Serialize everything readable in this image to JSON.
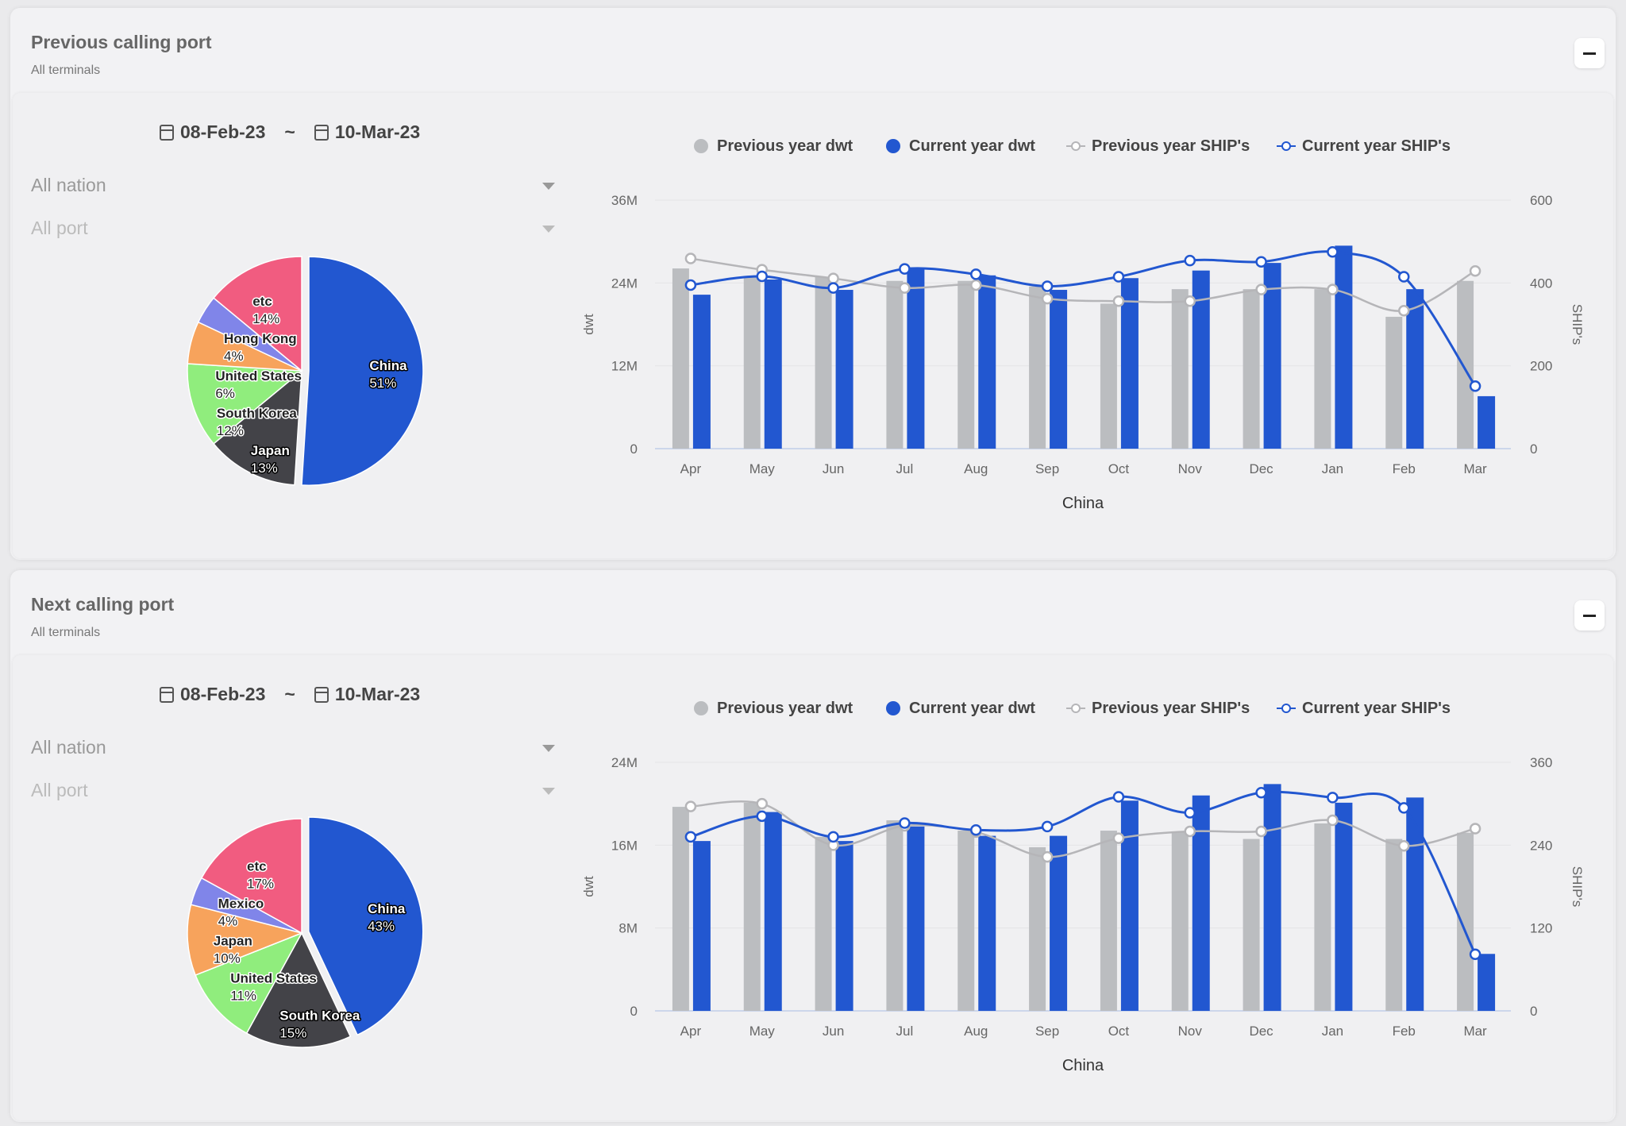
{
  "panels": [
    {
      "title": "Previous calling port",
      "subtitle": "All terminals",
      "date_from": "08-Feb-23",
      "date_sep": "~",
      "date_to": "10-Mar-23",
      "nation_select": "All nation",
      "port_select": "All port"
    },
    {
      "title": "Next calling port",
      "subtitle": "All terminals",
      "date_from": "08-Feb-23",
      "date_sep": "~",
      "date_to": "10-Mar-23",
      "nation_select": "All nation",
      "port_select": "All port"
    }
  ],
  "colors": {
    "prev_dwt": "#bbbdc0",
    "cur_dwt": "#2257d0",
    "prev_ships": "#b5b5b8",
    "cur_ships": "#2257d0"
  },
  "chart_data": [
    {
      "type": "pie",
      "slices": [
        {
          "label": "China",
          "value": 51,
          "pct": "51%",
          "color": "#2257d0"
        },
        {
          "label": "Japan",
          "value": 13,
          "pct": "13%",
          "color": "#434348"
        },
        {
          "label": "South Korea",
          "value": 12,
          "pct": "12%",
          "color": "#90ed7d"
        },
        {
          "label": "United States",
          "value": 6,
          "pct": "6%",
          "color": "#f7a35c"
        },
        {
          "label": "Hong Kong",
          "value": 4,
          "pct": "4%",
          "color": "#8085e9"
        },
        {
          "label": "etc",
          "value": 14,
          "pct": "14%",
          "color": "#f15c80"
        }
      ]
    },
    {
      "type": "bar",
      "title": "China",
      "xlabel": "China",
      "ylabel": "dwt",
      "y2label": "SHIP's",
      "categories": [
        "Apr",
        "May",
        "Jun",
        "Jul",
        "Aug",
        "Sep",
        "Oct",
        "Nov",
        "Dec",
        "Jan",
        "Feb",
        "Mar"
      ],
      "ylim": [
        0,
        36
      ],
      "yticks": [
        "0",
        "12M",
        "24M",
        "36M"
      ],
      "y2lim": [
        0,
        600
      ],
      "y2ticks": [
        "0",
        "200",
        "400",
        "600"
      ],
      "legend": [
        "Previous year dwt",
        "Current year dwt",
        "Previous year SHIP's",
        "Current year SHIP's"
      ],
      "series": [
        {
          "name": "Previous year dwt",
          "unit": "M",
          "values": [
            26.1,
            24.9,
            24.9,
            24.3,
            24.3,
            23.5,
            21.0,
            23.1,
            23.1,
            23.1,
            19.1,
            24.3
          ]
        },
        {
          "name": "Current year dwt",
          "unit": "M",
          "values": [
            22.3,
            24.5,
            23.0,
            26.1,
            25.1,
            23.0,
            24.7,
            25.8,
            26.9,
            29.4,
            23.1,
            7.6
          ]
        },
        {
          "name": "Previous year SHIP's",
          "values": [
            459,
            432,
            411,
            388,
            395,
            362,
            356,
            356,
            384,
            384,
            333,
            429
          ]
        },
        {
          "name": "Current year SHIP's",
          "values": [
            395,
            416,
            388,
            434,
            421,
            392,
            415,
            454,
            451,
            475,
            415,
            151
          ]
        }
      ]
    },
    {
      "type": "pie",
      "slices": [
        {
          "label": "China",
          "value": 43,
          "pct": "43%",
          "color": "#2257d0"
        },
        {
          "label": "South Korea",
          "value": 15,
          "pct": "15%",
          "color": "#434348"
        },
        {
          "label": "United States",
          "value": 11,
          "pct": "11%",
          "color": "#90ed7d"
        },
        {
          "label": "Japan",
          "value": 10,
          "pct": "10%",
          "color": "#f7a35c"
        },
        {
          "label": "Mexico",
          "value": 4,
          "pct": "4%",
          "color": "#8085e9"
        },
        {
          "label": "etc",
          "value": 17,
          "pct": "17%",
          "color": "#f15c80"
        }
      ]
    },
    {
      "type": "bar",
      "title": "China",
      "xlabel": "China",
      "ylabel": "dwt",
      "y2label": "SHIP's",
      "categories": [
        "Apr",
        "May",
        "Jun",
        "Jul",
        "Aug",
        "Sep",
        "Oct",
        "Nov",
        "Dec",
        "Jan",
        "Feb",
        "Mar"
      ],
      "ylim": [
        0,
        24
      ],
      "yticks": [
        "0",
        "8M",
        "16M",
        "24M"
      ],
      "y2lim": [
        0,
        360
      ],
      "y2ticks": [
        "0",
        "120",
        "240",
        "360"
      ],
      "legend": [
        "Previous year dwt",
        "Current year dwt",
        "Previous year SHIP's",
        "Current year SHIP's"
      ],
      "series": [
        {
          "name": "Previous year dwt",
          "unit": "M",
          "values": [
            19.7,
            20.1,
            16.8,
            18.4,
            17.4,
            15.8,
            17.4,
            17.3,
            16.6,
            18.1,
            16.6,
            17.2
          ]
        },
        {
          "name": "Current year dwt",
          "unit": "M",
          "values": [
            16.4,
            19.2,
            16.4,
            17.8,
            16.9,
            16.9,
            20.3,
            20.8,
            21.9,
            20.1,
            20.6,
            5.5
          ]
        },
        {
          "name": "Previous year SHIP's",
          "values": [
            296,
            300,
            240,
            268,
            259,
            223,
            250,
            260,
            260,
            276,
            239,
            264
          ]
        },
        {
          "name": "Current year SHIP's",
          "values": [
            252,
            282,
            252,
            272,
            262,
            267,
            310,
            287,
            316,
            309,
            294,
            82
          ]
        }
      ]
    }
  ]
}
